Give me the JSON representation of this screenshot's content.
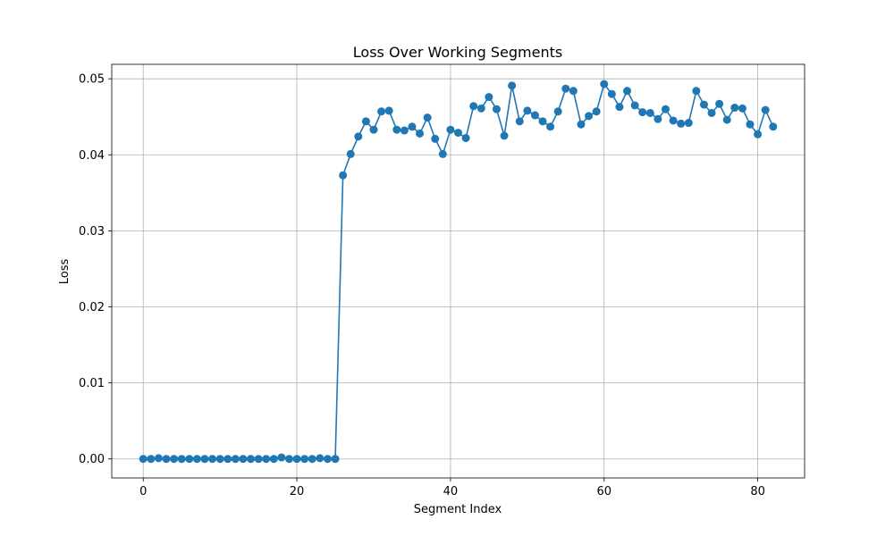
{
  "chart_data": {
    "type": "line",
    "title": "Loss Over Working Segments",
    "xlabel": "Segment Index",
    "ylabel": "Loss",
    "xlim": [
      -4.1,
      86.1
    ],
    "ylim": [
      -0.0025,
      0.0519
    ],
    "x_ticks": [
      0,
      20,
      40,
      60,
      80
    ],
    "y_ticks": [
      0.0,
      0.01,
      0.02,
      0.03,
      0.04,
      0.05
    ],
    "x_tick_labels": [
      "0",
      "20",
      "40",
      "60",
      "80"
    ],
    "y_tick_labels": [
      "0.00",
      "0.01",
      "0.02",
      "0.03",
      "0.04",
      "0.05"
    ],
    "grid": true,
    "markers": true,
    "series": [
      {
        "color": "#1f77b4",
        "x": [
          0,
          1,
          2,
          3,
          4,
          5,
          6,
          7,
          8,
          9,
          10,
          11,
          12,
          13,
          14,
          15,
          16,
          17,
          18,
          19,
          20,
          21,
          22,
          23,
          24,
          25,
          26,
          27,
          28,
          29,
          30,
          31,
          32,
          33,
          34,
          35,
          36,
          37,
          38,
          39,
          40,
          41,
          42,
          43,
          44,
          45,
          46,
          47,
          48,
          49,
          50,
          51,
          52,
          53,
          54,
          55,
          56,
          57,
          58,
          59,
          60,
          61,
          62,
          63,
          64,
          65,
          66,
          67,
          68,
          69,
          70,
          71,
          72,
          73,
          74,
          75,
          76,
          77,
          78,
          79,
          80,
          81,
          82
        ],
        "values": [
          0.0,
          0.0,
          0.0001,
          0.0,
          0.0,
          0.0,
          0.0,
          0.0,
          0.0,
          0.0,
          0.0,
          0.0,
          0.0,
          0.0,
          0.0,
          0.0,
          0.0,
          0.0,
          0.0002,
          0.0,
          0.0,
          0.0,
          0.0,
          0.0001,
          0.0,
          0.0,
          0.0373,
          0.0401,
          0.0424,
          0.0444,
          0.0433,
          0.0457,
          0.0458,
          0.0433,
          0.0432,
          0.0437,
          0.0428,
          0.0449,
          0.0421,
          0.0401,
          0.0433,
          0.0429,
          0.0422,
          0.0464,
          0.0461,
          0.0476,
          0.046,
          0.0425,
          0.0491,
          0.0444,
          0.0458,
          0.0452,
          0.0444,
          0.0437,
          0.0457,
          0.0487,
          0.0484,
          0.044,
          0.0451,
          0.0457,
          0.0493,
          0.048,
          0.0463,
          0.0484,
          0.0465,
          0.0456,
          0.0455,
          0.0447,
          0.046,
          0.0445,
          0.0441,
          0.0442,
          0.0484,
          0.0466,
          0.0455,
          0.0467,
          0.0446,
          0.0462,
          0.0461,
          0.044,
          0.0427,
          0.0459,
          0.0437
        ]
      }
    ]
  }
}
